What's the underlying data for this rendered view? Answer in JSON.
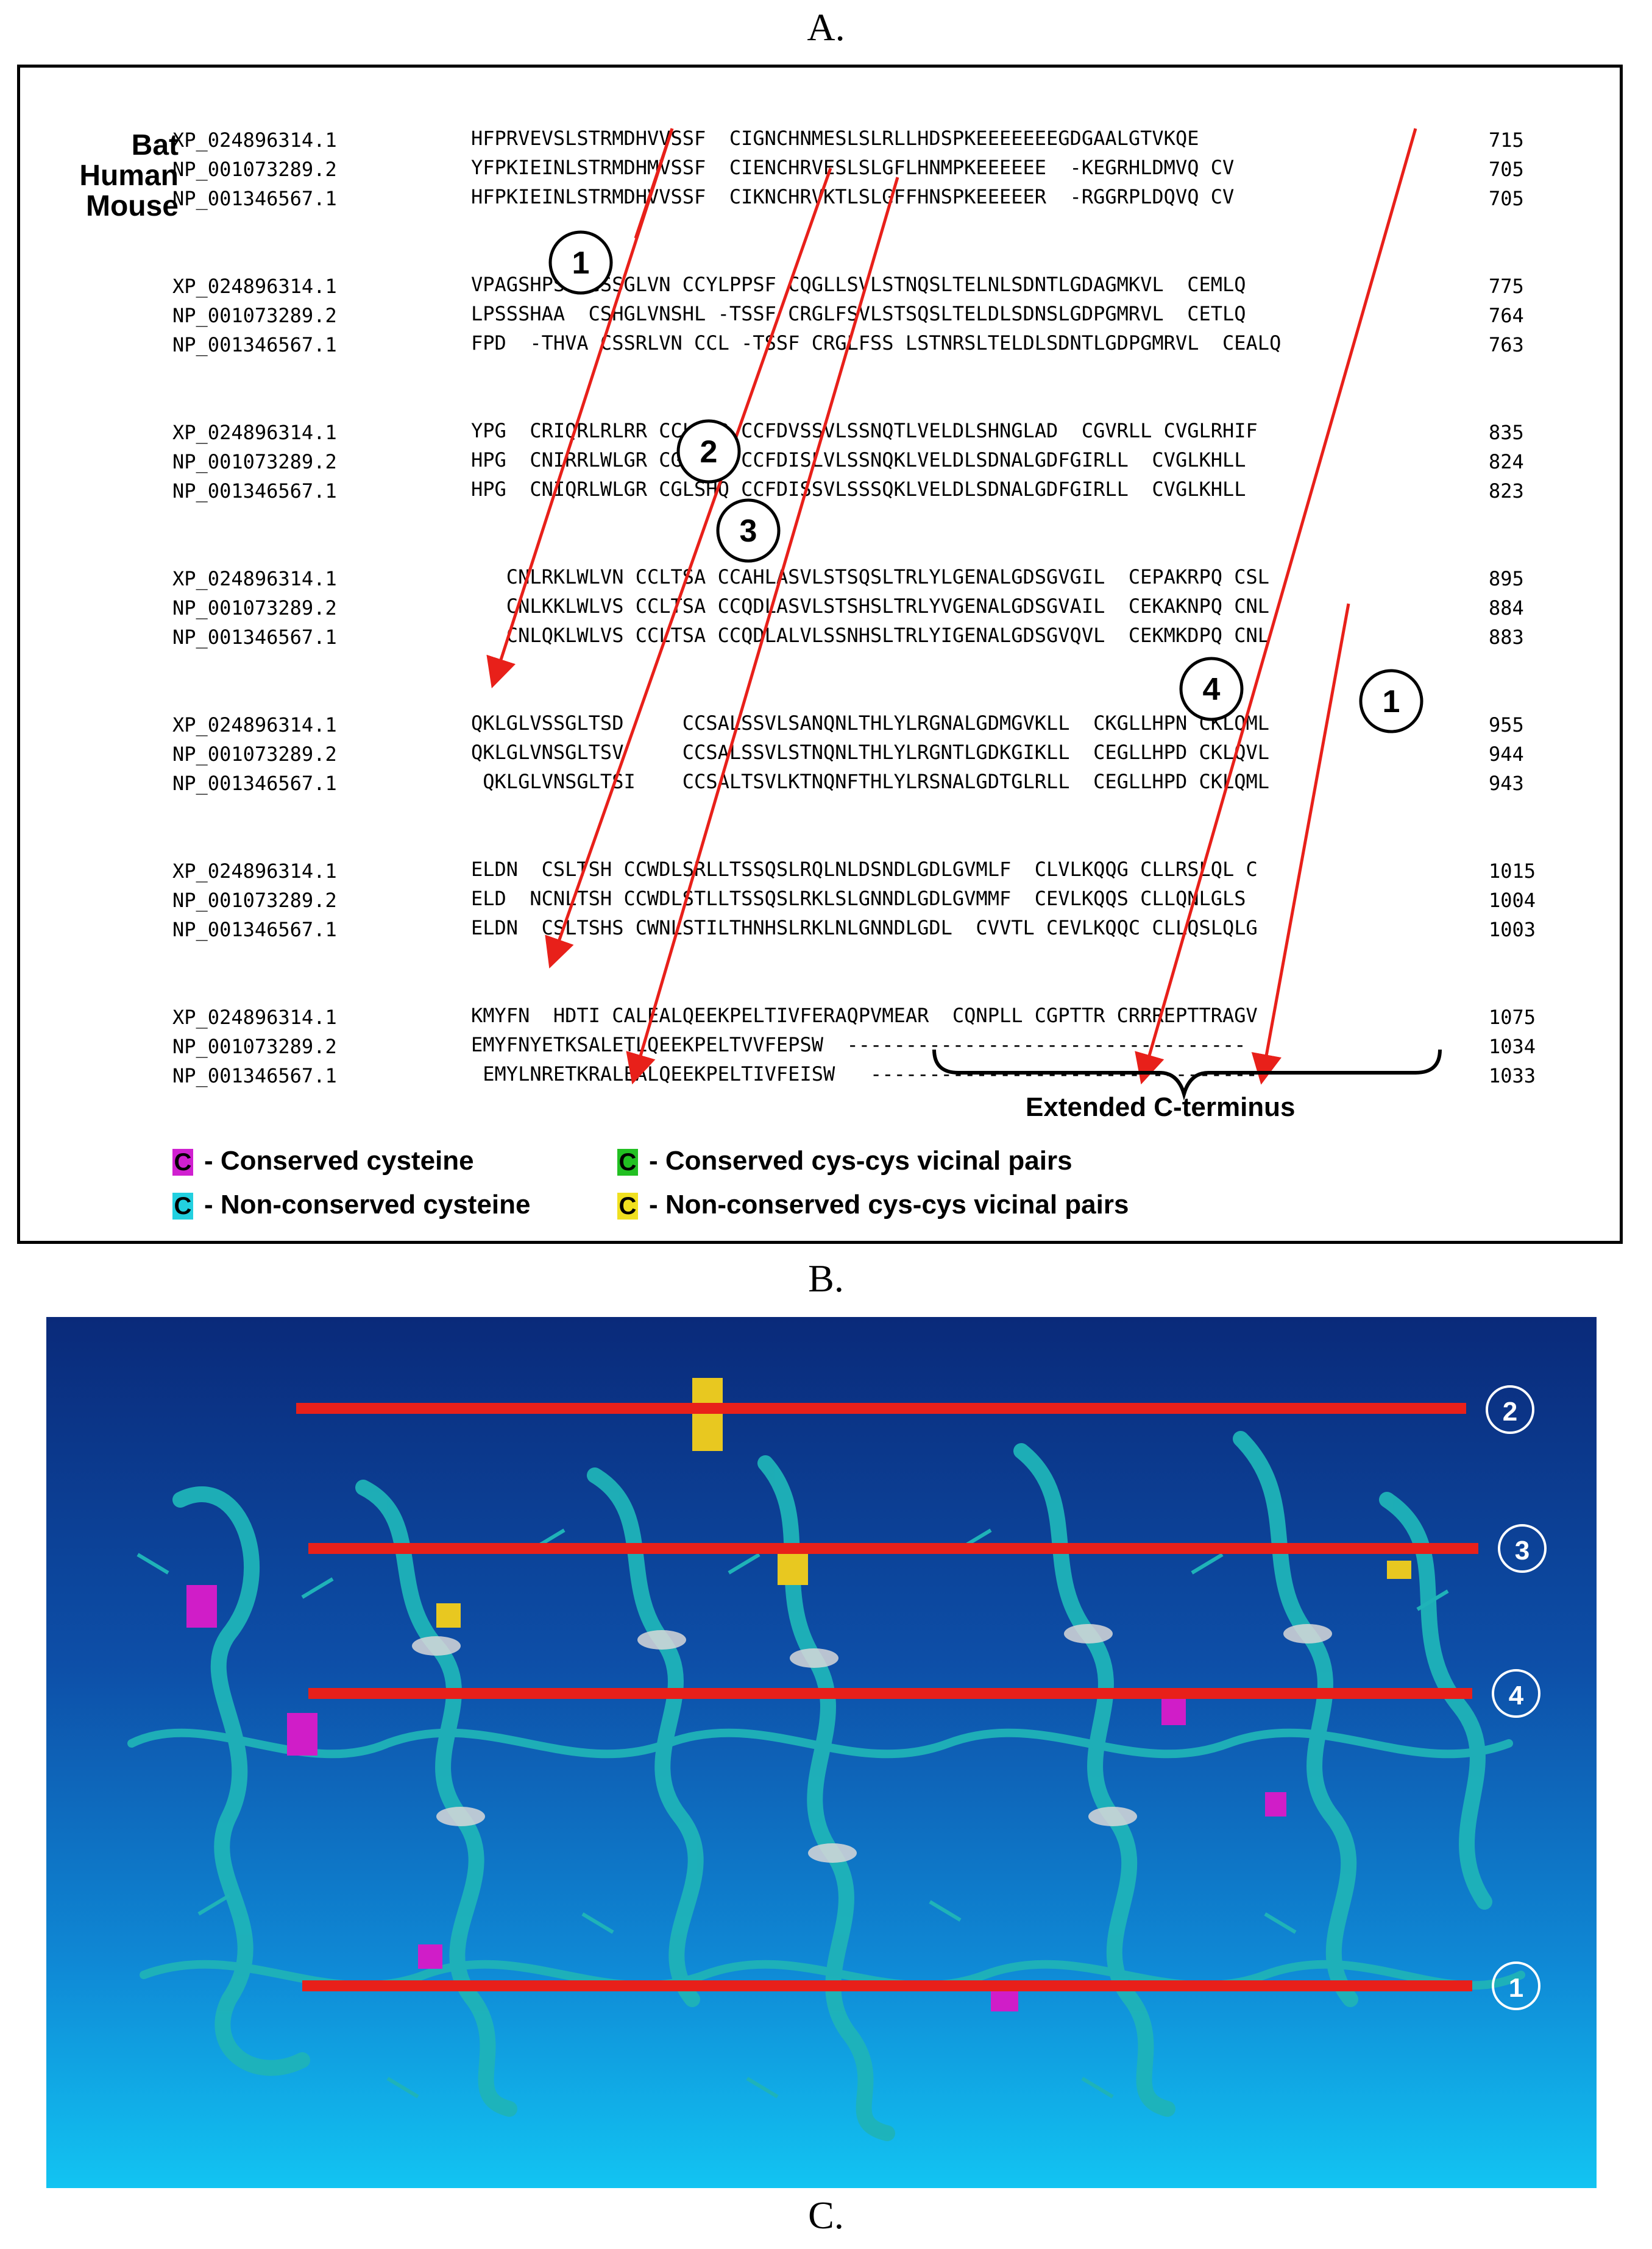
{
  "labels": {
    "a": "A.",
    "b": "B.",
    "c": "C."
  },
  "species": [
    "Bat",
    "Human",
    "Mouse"
  ],
  "blocks": [
    {
      "rows": [
        {
          "acc": "XP_024896314.1",
          "seq": "HFPRVEVSLSTRMDHVVSSF  CIGNCHNMESLSLRLLHDSPKEEEEEEEGDGAALGTVKQE  ",
          "pos": "715"
        },
        {
          "acc": "NP_001073289.2",
          "seq": "YFPKIEINLSTRMDHMVSSF  CIENCHRVESLSLGFLHNMPKEEEEEE  -KEGRHLDMVQ CV",
          "pos": "705"
        },
        {
          "acc": "NP_001346567.1",
          "seq": "HFPKIEINLSTRMDHVVSSF  CIKNCHRVKTLSLGFFHNSPKEEEEER  -RGGRPLDQVQ CV",
          "pos": "705"
        }
      ]
    },
    {
      "rows": [
        {
          "acc": "XP_024896314.1",
          "seq": "VPAGSHPS  CSSGLVN CCYLPPSF CQGLLSVLSTNQSLTELNLSDNTLGDAGMKVL  CEMLQ",
          "pos": "775"
        },
        {
          "acc": "NP_001073289.2",
          "seq": "LPSSSHAA  CSHGLVNSHL -TSSF CRGLFSVLSTSQSLTELDLSDNSLGDPGMRVL  CETLQ",
          "pos": "764"
        },
        {
          "acc": "NP_001346567.1",
          "seq": "FPD  -THVA CSSRLVN CCL -TSSF CRGLFSS LSTNRSLTELDLSDNTLGDPGMRVL  CEALQ",
          "pos": "763"
        }
      ]
    },
    {
      "rows": [
        {
          "acc": "XP_024896314.1",
          "seq": "YPG  CRIQRLRLRR CCLSHR CCFDVSSVLSSNQTLVELDLSHNGLAD  CGVRLL CVGLRHIF",
          "pos": "835"
        },
        {
          "acc": "NP_001073289.2",
          "seq": "HPG  CNIRRLWLGR CGLSHE CCFDISLVLSSNQKLVELDLSDNALGDFGIRLL  CVGLKHLL",
          "pos": "824"
        },
        {
          "acc": "NP_001346567.1",
          "seq": "HPG  CNIQRLWLGR CGLSHQ CCFDISSVLSSSQKLVELDLSDNALGDFGIRLL  CVGLKHLL",
          "pos": "823"
        }
      ]
    },
    {
      "rows": [
        {
          "acc": "XP_024896314.1",
          "seq": "   CNLRKLWLVN CCLTSA CCAHLASVLSTSQSLTRLYLGENALGDSGVGIL  CEPAKRPQ CSL",
          "pos": "895"
        },
        {
          "acc": "NP_001073289.2",
          "seq": "   CNLKKLWLVS CCLTSA CCQDLASVLSTSHSLTRLYVGENALGDSGVAIL  CEKAKNPQ CNL",
          "pos": "884"
        },
        {
          "acc": "NP_001346567.1",
          "seq": "   CNLQKLWLVS CCLTSA CCQDLALVLSSNHSLTRLYIGENALGDSGVQVL  CEKMKDPQ CNL",
          "pos": "883"
        }
      ]
    },
    {
      "rows": [
        {
          "acc": "XP_024896314.1",
          "seq": "QKLGLVSSGLTSD     CCSALSSVLSANQNLTHLYLRGNALGDMGVKLL  CKGLLHPN CKLQML",
          "pos": "955"
        },
        {
          "acc": "NP_001073289.2",
          "seq": "QKLGLVNSGLTSV     CCSALSSVLSTNQNLTHLYLRGNTLGDKGIKLL  CEGLLHPD CKLQVL",
          "pos": "944"
        },
        {
          "acc": "NP_001346567.1",
          "seq": " QKLGLVNSGLTSI    CCSALTSVLKTNQNFTHLYLRSNALGDTGLRLL  CEGLLHPD CKLQML",
          "pos": "943"
        }
      ]
    },
    {
      "rows": [
        {
          "acc": "XP_024896314.1",
          "seq": "ELDN  CSLTSH CCWDLSRLLTSSQSLRQLNLDSNDLGDLGVMLF  CLVLKQQG CLLRSLQL C",
          "pos": "1015"
        },
        {
          "acc": "NP_001073289.2",
          "seq": "ELD  NCNLTSH CCWDLSTLLTSSQSLRKLSLGNNDLGDLGVMMF  CEVLKQQS CLLQNLGLS",
          "pos": "1004"
        },
        {
          "acc": "NP_001346567.1",
          "seq": "ELDN  CSLTSHS CWNLSTILTHNHSLRKLNLGNNDLGDL  CVVTL CEVLKQQC CLLQSLQLG",
          "pos": "1003"
        }
      ]
    },
    {
      "rows": [
        {
          "acc": "XP_024896314.1",
          "seq": "KMYFN  HDTI CALEALQEEKPELTIVFERAQPVMEAR  CQNPLL CGPTTR CRRREPTTRAGV",
          "pos": "1075"
        },
        {
          "acc": "NP_001073289.2",
          "seq": "EMYFNYETKSALETLQEEKPELTVVFEPSW  ----------------------------------",
          "pos": "1034"
        },
        {
          "acc": "NP_001346567.1",
          "seq": " EMYLNRETKRALEALQEEKPELTIVFEISW   ----------------------------------",
          "pos": "1033"
        }
      ]
    }
  ],
  "extended_label": "Extended C-terminus",
  "legend": [
    {
      "swatch": "C",
      "color": "#d020d0",
      "text": "- Conserved cysteine"
    },
    {
      "swatch": "C",
      "color": "#22d0e0",
      "text": "- Non-conserved cysteine"
    },
    {
      "swatch": "C",
      "color": "#22c022",
      "text": "- Conserved cys-cys vicinal pairs"
    },
    {
      "swatch": "C",
      "color": "#f0e020",
      "text": "- Non-conserved cys-cys vicinal pairs"
    }
  ],
  "circle_labels_a": [
    "1",
    "2",
    "3",
    "4",
    "1"
  ],
  "badges_b": [
    "2",
    "3",
    "4",
    "1"
  ],
  "colors": {
    "conserved": "#d020d0",
    "nonconserved": "#22d0e0",
    "vicinal_conserved": "#22c022",
    "vicinal_nonconserved": "#f0e020",
    "arrow": "#e8201a",
    "bg_top": "#0a2a7a",
    "bg_bottom": "#12c4f2",
    "helix": "#1fb3b8"
  }
}
